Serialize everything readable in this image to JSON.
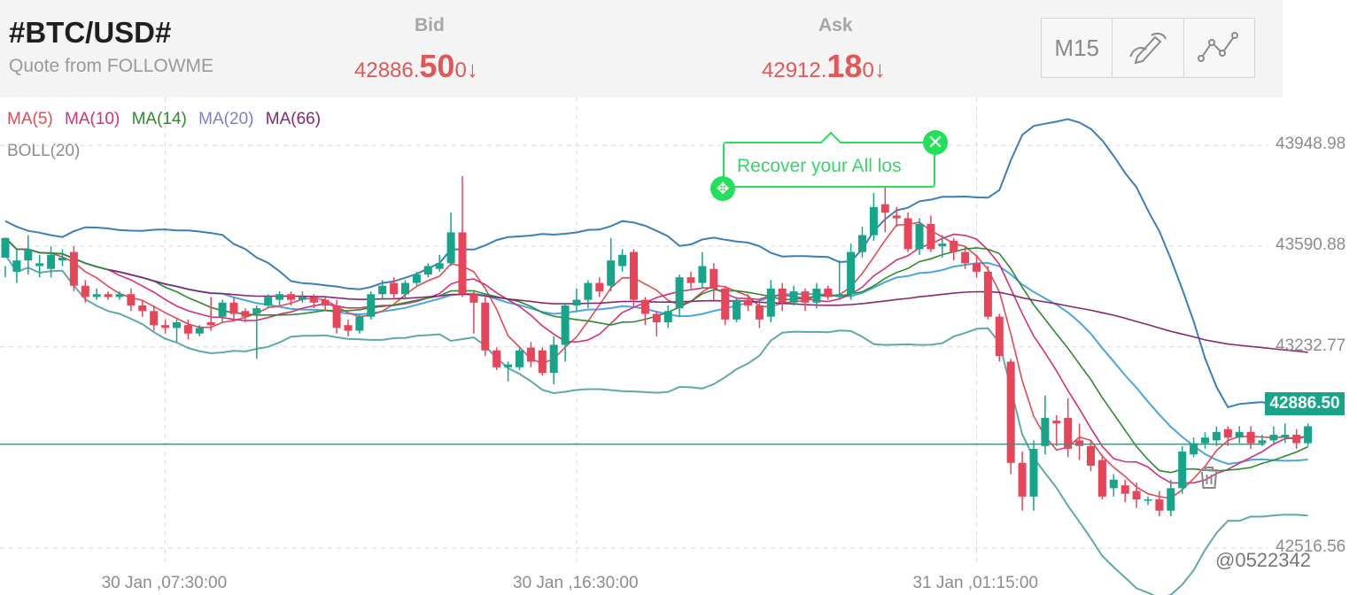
{
  "header": {
    "symbol": "#BTC/USD#",
    "quote_from": "Quote from FOLLOWME",
    "bid": {
      "label": "Bid",
      "pre": "42886.",
      "big": "50",
      "post": "0",
      "arrow": "↓"
    },
    "ask": {
      "label": "Ask",
      "pre": "42912.",
      "big": "18",
      "post": "0",
      "arrow": "↓"
    }
  },
  "toolbar": {
    "timeframe": "M15",
    "draw_icon": "pen-icon",
    "line_icon": "trendline-icon"
  },
  "indicators": {
    "ma": [
      {
        "label": "MA(5)",
        "color": "#e14b54"
      },
      {
        "label": "MA(10)",
        "color": "#d3307a"
      },
      {
        "label": "MA(14)",
        "color": "#2e8a2e"
      },
      {
        "label": "MA(20)",
        "color": "#7f7fc8"
      },
      {
        "label": "MA(66)",
        "color": "#86286f"
      }
    ],
    "boll": "BOLL(20)"
  },
  "annotation": {
    "text": "Recover your All los"
  },
  "current_price_label": "42886.50",
  "watermark": "@0522342",
  "colors": {
    "up": "#16a589",
    "down": "#e6455a",
    "boll_upper": "#3c7fb8",
    "boll_lower": "#5fa9a9"
  },
  "chart_data": {
    "type": "candlestick",
    "title": "",
    "xlabel": "",
    "ylabel": "",
    "ylim": [
      42350,
      44120
    ],
    "y_ticks": [
      43948.98,
      43590.88,
      43232.77,
      42516.56
    ],
    "y_tick_labels": [
      "43948.98",
      "43590.88",
      "43232.77",
      "42516.56"
    ],
    "x_tick_labels": [
      "30 Jan ,07:30:00",
      "30 Jan ,16:30:00",
      "31 Jan ,01:15:00"
    ],
    "x_tick_index": [
      14,
      50,
      85
    ],
    "current_price": 42886.5,
    "candles": [
      [
        43550,
        43620,
        43520,
        43480
      ],
      [
        43500,
        43540,
        43580,
        43460
      ],
      [
        43540,
        43580,
        43630,
        43490
      ],
      [
        43520,
        43530,
        43560,
        43480
      ],
      [
        43510,
        43560,
        43590,
        43480
      ],
      [
        43540,
        43550,
        43580,
        43520
      ],
      [
        43570,
        43450,
        43590,
        43430
      ],
      [
        43450,
        43410,
        43470,
        43390
      ],
      [
        43410,
        43420,
        43440,
        43400
      ],
      [
        43420,
        43410,
        43430,
        43400
      ],
      [
        43410,
        43420,
        43430,
        43400
      ],
      [
        43420,
        43380,
        43440,
        43360
      ],
      [
        43380,
        43360,
        43400,
        43340
      ],
      [
        43360,
        43310,
        43380,
        43290
      ],
      [
        43310,
        43300,
        43330,
        43280
      ],
      [
        43300,
        43320,
        43330,
        43250
      ],
      [
        43310,
        43280,
        43330,
        43260
      ],
      [
        43280,
        43300,
        43310,
        43270
      ],
      [
        43320,
        43310,
        43410,
        43290
      ],
      [
        43340,
        43390,
        43400,
        43320
      ],
      [
        43390,
        43350,
        43410,
        43330
      ],
      [
        43360,
        43340,
        43370,
        43320
      ],
      [
        43350,
        43370,
        43380,
        43190
      ],
      [
        43380,
        43410,
        43420,
        43370
      ],
      [
        43400,
        43420,
        43430,
        43380
      ],
      [
        43420,
        43400,
        43430,
        43380
      ],
      [
        43400,
        43410,
        43430,
        43390
      ],
      [
        43410,
        43390,
        43420,
        43370
      ],
      [
        43400,
        43380,
        43410,
        43360
      ],
      [
        43380,
        43300,
        43400,
        43280
      ],
      [
        43310,
        43290,
        43330,
        43270
      ],
      [
        43290,
        43340,
        43350,
        43280
      ],
      [
        43340,
        43420,
        43430,
        43330
      ],
      [
        43420,
        43450,
        43470,
        43400
      ],
      [
        43460,
        43420,
        43480,
        43400
      ],
      [
        43420,
        43460,
        43470,
        43400
      ],
      [
        43460,
        43490,
        43500,
        43450
      ],
      [
        43490,
        43520,
        43530,
        43480
      ],
      [
        43510,
        43530,
        43560,
        43500
      ],
      [
        43530,
        43640,
        43710,
        43520
      ],
      [
        43640,
        43420,
        43840,
        43410
      ],
      [
        43420,
        43390,
        43430,
        43280
      ],
      [
        43390,
        43220,
        43410,
        43200
      ],
      [
        43220,
        43160,
        43230,
        43150
      ],
      [
        43160,
        43170,
        43180,
        43110
      ],
      [
        43160,
        43220,
        43230,
        43150
      ],
      [
        43230,
        43180,
        43250,
        43160
      ],
      [
        43220,
        43140,
        43230,
        43130
      ],
      [
        43140,
        43240,
        43270,
        43100
      ],
      [
        43240,
        43380,
        43390,
        43180
      ],
      [
        43380,
        43400,
        43440,
        43360
      ],
      [
        43400,
        43460,
        43470,
        43370
      ],
      [
        43460,
        43430,
        43480,
        43410
      ],
      [
        43450,
        43540,
        43620,
        43430
      ],
      [
        43520,
        43560,
        43580,
        43500
      ],
      [
        43570,
        43400,
        43580,
        43370
      ],
      [
        43400,
        43350,
        43410,
        43310
      ],
      [
        43350,
        43320,
        43360,
        43270
      ],
      [
        43320,
        43360,
        43380,
        43300
      ],
      [
        43370,
        43480,
        43490,
        43340
      ],
      [
        43480,
        43460,
        43500,
        43440
      ],
      [
        43460,
        43520,
        43570,
        43440
      ],
      [
        43510,
        43440,
        43530,
        43400
      ],
      [
        43440,
        43330,
        43450,
        43310
      ],
      [
        43330,
        43400,
        43410,
        43320
      ],
      [
        43400,
        43380,
        43420,
        43360
      ],
      [
        43380,
        43330,
        43400,
        43300
      ],
      [
        43340,
        43440,
        43470,
        43320
      ],
      [
        43440,
        43390,
        43460,
        43360
      ],
      [
        43390,
        43430,
        43450,
        43380
      ],
      [
        43430,
        43390,
        43440,
        43360
      ],
      [
        43390,
        43440,
        43460,
        43370
      ],
      [
        43440,
        43410,
        43450,
        43400
      ],
      [
        43410,
        43420,
        43540,
        43400
      ],
      [
        43420,
        43570,
        43600,
        43400
      ],
      [
        43570,
        43630,
        43660,
        43550
      ],
      [
        43630,
        43730,
        43780,
        43610
      ],
      [
        43740,
        43710,
        43800,
        43640
      ],
      [
        43700,
        43690,
        43730,
        43660
      ],
      [
        43690,
        43580,
        43710,
        43570
      ],
      [
        43580,
        43670,
        43690,
        43560
      ],
      [
        43670,
        43580,
        43700,
        43570
      ],
      [
        43590,
        43600,
        43630,
        43550
      ],
      [
        43610,
        43570,
        43620,
        43540
      ],
      [
        43570,
        43530,
        43590,
        43510
      ],
      [
        43530,
        43500,
        43560,
        43480
      ],
      [
        43500,
        43340,
        43520,
        43330
      ],
      [
        43340,
        43200,
        43350,
        43180
      ],
      [
        43180,
        42820,
        43190,
        42780
      ],
      [
        42820,
        42700,
        42860,
        42650
      ],
      [
        42700,
        42870,
        42900,
        42650
      ],
      [
        42880,
        42980,
        43060,
        42850
      ],
      [
        42970,
        42960,
        42990,
        42880
      ],
      [
        42980,
        42870,
        43050,
        42840
      ],
      [
        42900,
        42880,
        42960,
        42830
      ],
      [
        42880,
        42810,
        42900,
        42790
      ],
      [
        42830,
        42700,
        42850,
        42690
      ],
      [
        42730,
        42760,
        42780,
        42700
      ],
      [
        42740,
        42710,
        42760,
        42680
      ],
      [
        42720,
        42690,
        42750,
        42660
      ],
      [
        42690,
        42690,
        42700,
        42670
      ],
      [
        42690,
        42650,
        42720,
        42630
      ],
      [
        42650,
        42730,
        42760,
        42630
      ],
      [
        42730,
        42860,
        42880,
        42710
      ],
      [
        42850,
        42890,
        42910,
        42840
      ],
      [
        42890,
        42910,
        42930,
        42870
      ],
      [
        42900,
        42930,
        42950,
        42880
      ],
      [
        42940,
        42910,
        42950,
        42880
      ],
      [
        42910,
        42930,
        42950,
        42890
      ],
      [
        42930,
        42890,
        42950,
        42870
      ],
      [
        42890,
        42900,
        42920,
        42880
      ],
      [
        42900,
        42920,
        42950,
        42890
      ],
      [
        42910,
        42920,
        42960,
        42890
      ],
      [
        42920,
        42890,
        42940,
        42870
      ],
      [
        42890,
        42950,
        42960,
        42880
      ]
    ]
  }
}
